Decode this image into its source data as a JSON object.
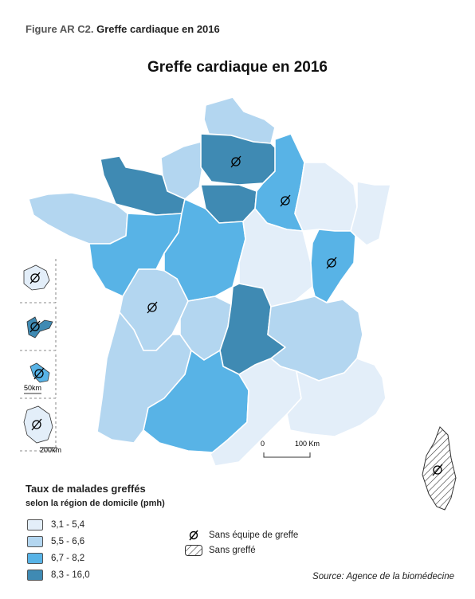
{
  "caption": {
    "figure_label": "Figure AR C2.",
    "figure_title": "Greffe cardiaque en 2016"
  },
  "map_title": "Greffe cardiaque en 2016",
  "colors": {
    "class_1": "#e3eef9",
    "class_2": "#b3d6f0",
    "class_3": "#58b3e6",
    "class_4": "#3f8ab3",
    "outline": "#ffffff"
  },
  "legend": {
    "title": "Taux de malades greffés",
    "subtitle": "selon la région de domicile (pmh)",
    "classes": [
      {
        "label": "3,1 - 5,4",
        "color": "#e3eef9"
      },
      {
        "label": "5,5 - 6,6",
        "color": "#b3d6f0"
      },
      {
        "label": "6,7 - 8,2",
        "color": "#58b3e6"
      },
      {
        "label": "8,3 - 16,0",
        "color": "#3f8ab3"
      }
    ],
    "symbols": [
      {
        "label": "Sans équipe de greffe",
        "icon": "empty-set-icon"
      },
      {
        "label": "Sans greffé",
        "icon": "hatch-icon"
      }
    ]
  },
  "scale": {
    "zero": "0",
    "end": "100 Km"
  },
  "insets": {
    "scale_1": "50km",
    "scale_2": "200km"
  },
  "source": "Source: Agence de la biomédecine"
}
